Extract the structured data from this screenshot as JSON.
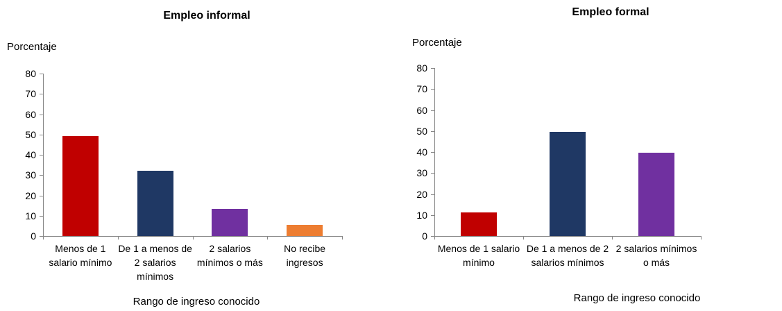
{
  "chart_data": [
    {
      "type": "bar",
      "title": "Empleo informal",
      "y_label": "Porcentaje",
      "x_label": "Rango de ingreso conocido",
      "categories": [
        "Menos de 1 salario mínimo",
        "De 1 a menos de 2 salarios mínimos",
        "2 salarios mínimos o más",
        "No recibe ingresos"
      ],
      "values": [
        49.4,
        32.2,
        13.3,
        5.6
      ],
      "colors": [
        "#c00000",
        "#1f3864",
        "#7030a0",
        "#ed7d31"
      ],
      "ylim": [
        0,
        80
      ],
      "yticks": [
        0,
        10,
        20,
        30,
        40,
        50,
        60,
        70,
        80
      ]
    },
    {
      "type": "bar",
      "title": "Empleo formal",
      "y_label": "Porcentaje",
      "x_label": "Rango de ingreso conocido",
      "categories": [
        "Menos de 1 salario mínimo",
        "De 1 a menos de 2 salarios mínimos",
        "2 salarios mínimos o más"
      ],
      "values": [
        11.2,
        49.6,
        39.7
      ],
      "colors": [
        "#c00000",
        "#1f3864",
        "#7030a0"
      ],
      "ylim": [
        0,
        80
      ],
      "yticks": [
        0,
        10,
        20,
        30,
        40,
        50,
        60,
        70,
        80
      ]
    }
  ]
}
